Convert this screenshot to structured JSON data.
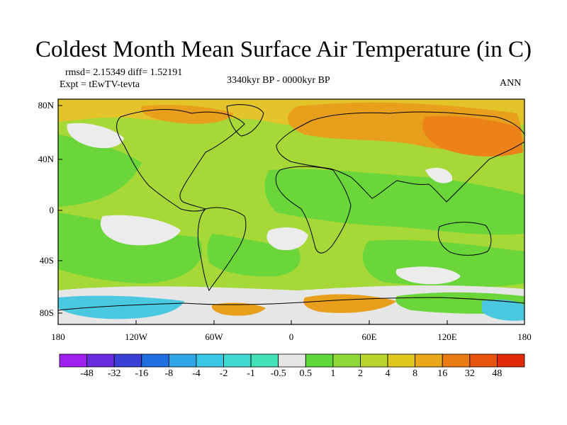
{
  "title": "Coldest Month Mean Surface Air Temperature (in C)",
  "stats": "rmsd= 2.15349 diff= 1.52191",
  "expt": "Expt = tEwTV-tevta",
  "period": "3340kyr BP - 0000kyr BP",
  "season": "ANN",
  "lat_labels": [
    "80N",
    "40N",
    "0",
    "40S",
    "80S"
  ],
  "lon_labels": [
    "180",
    "120W",
    "60W",
    "0",
    "60E",
    "120E",
    "180"
  ],
  "colorbar": {
    "labels": [
      "-48",
      "-32",
      "-16",
      "-8",
      "-4",
      "-2",
      "-1",
      "-0.5",
      "0.5",
      "1",
      "2",
      "4",
      "8",
      "16",
      "32",
      "48"
    ],
    "colors": [
      "#a020f0",
      "#6a2ce0",
      "#3a3fd6",
      "#1f6fe0",
      "#2fa6e6",
      "#3bc8e6",
      "#40d8d0",
      "#44e0b8",
      "#e6e6e6",
      "#5fd83a",
      "#8fd83a",
      "#b8d62e",
      "#e0c81e",
      "#e8a81a",
      "#ea7a14",
      "#e8540e",
      "#e02a08"
    ]
  }
}
